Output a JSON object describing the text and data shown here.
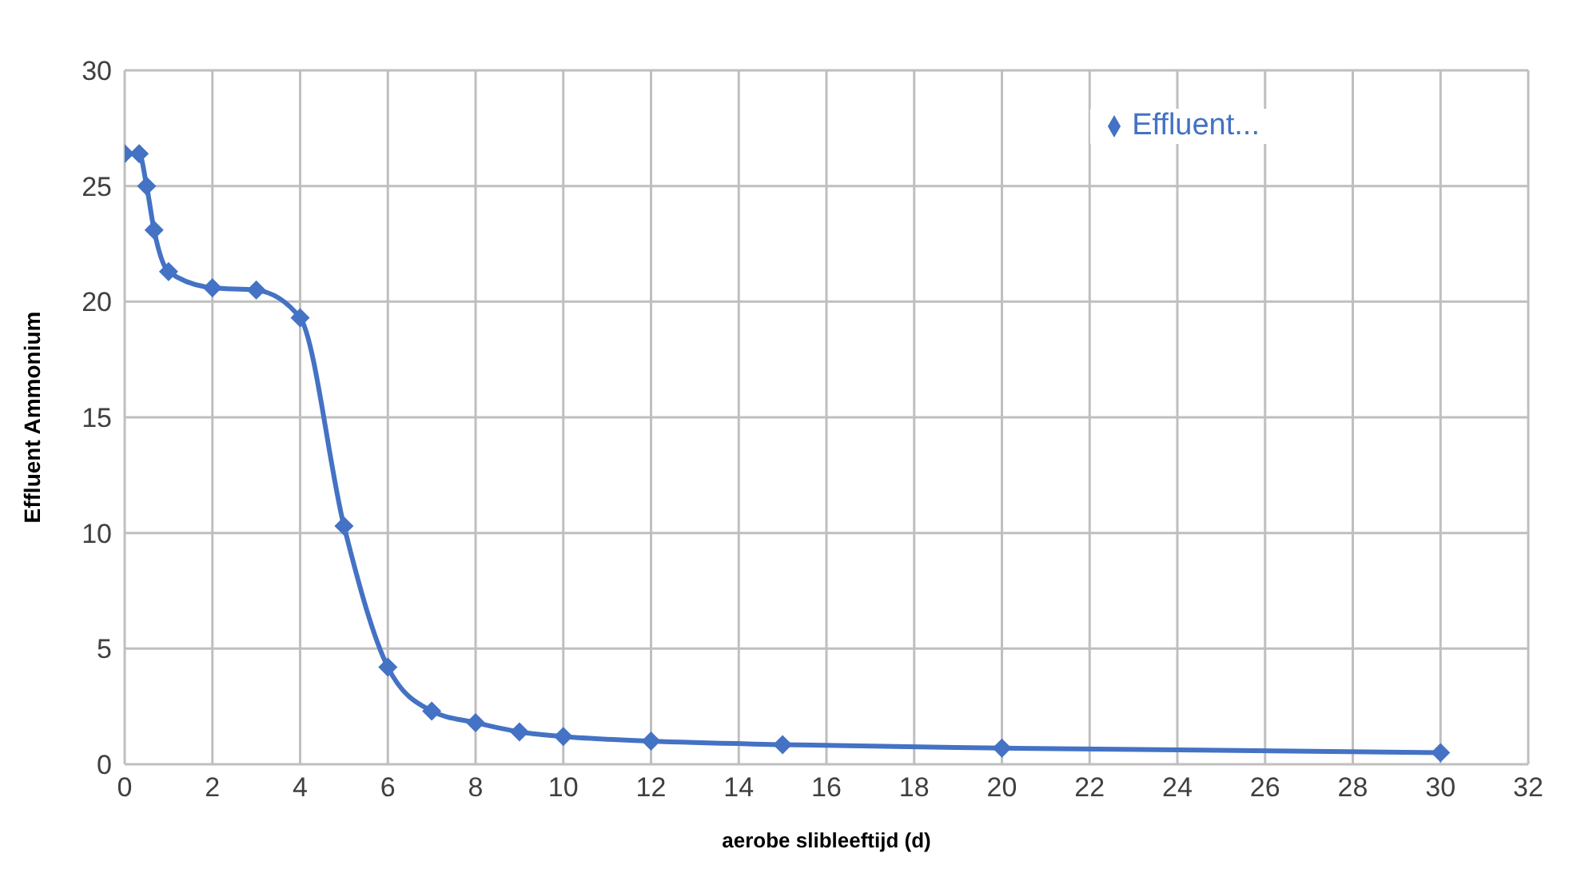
{
  "chart_data": {
    "type": "line",
    "xlabel": "aerobe slibleeftijd (d)",
    "ylabel": "Effluent Ammonium",
    "x": [
      0,
      0.33,
      0.5,
      0.67,
      1,
      2,
      3,
      4,
      5,
      6,
      7,
      8,
      9,
      10,
      12,
      15,
      20,
      30
    ],
    "series": [
      {
        "name": "Effluent...",
        "color": "#4472c4",
        "values": [
          26.4,
          26.4,
          25,
          23.1,
          21.3,
          20.6,
          20.5,
          19.3,
          10.3,
          4.2,
          2.3,
          1.8,
          1.4,
          1.2,
          1.0,
          0.85,
          0.7,
          0.5
        ]
      }
    ],
    "xlim": [
      0,
      32
    ],
    "xticks": [
      0,
      2,
      4,
      6,
      8,
      10,
      12,
      14,
      16,
      18,
      20,
      22,
      24,
      26,
      28,
      30,
      32
    ],
    "ylim": [
      0,
      30
    ],
    "yticks": [
      0,
      5,
      10,
      15,
      20,
      25,
      30
    ],
    "grid": true,
    "legend": "top right",
    "marker": "diamond",
    "line_style": "solid"
  }
}
